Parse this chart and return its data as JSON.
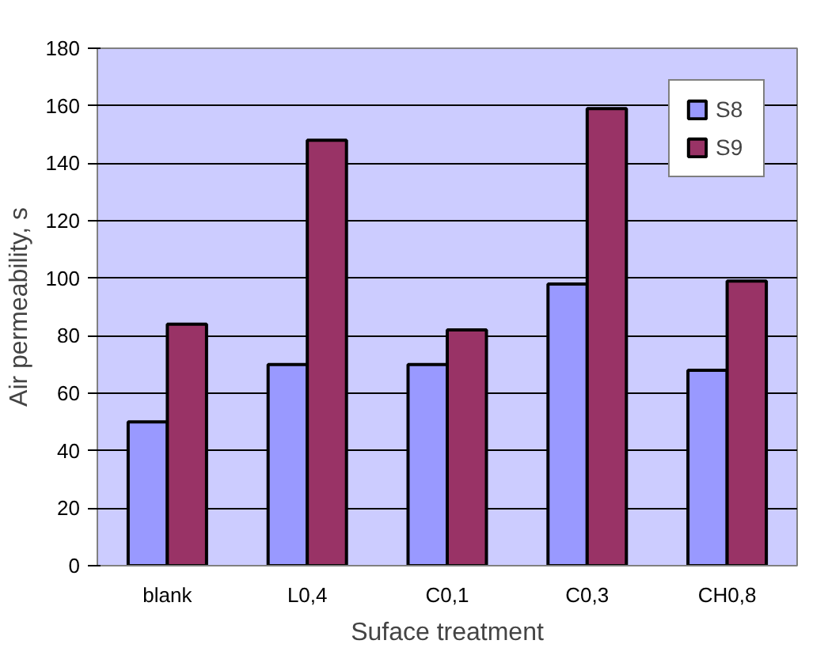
{
  "chart_data": {
    "type": "bar",
    "xlabel": "Suface treatment",
    "ylabel": "Air permeability, s",
    "categories": [
      "blank",
      "L0,4",
      "C0,1",
      "C0,3",
      "CH0,8"
    ],
    "series": [
      {
        "name": "S8",
        "color": "#9999ff",
        "values": [
          50,
          70,
          70,
          98,
          68
        ]
      },
      {
        "name": "S9",
        "color": "#993366",
        "values": [
          84,
          148,
          82,
          159,
          99
        ]
      }
    ],
    "ylim": [
      0,
      180
    ],
    "yticks": [
      0,
      20,
      40,
      60,
      80,
      100,
      120,
      140,
      160,
      180
    ],
    "grid": "y",
    "legend": "top right"
  }
}
